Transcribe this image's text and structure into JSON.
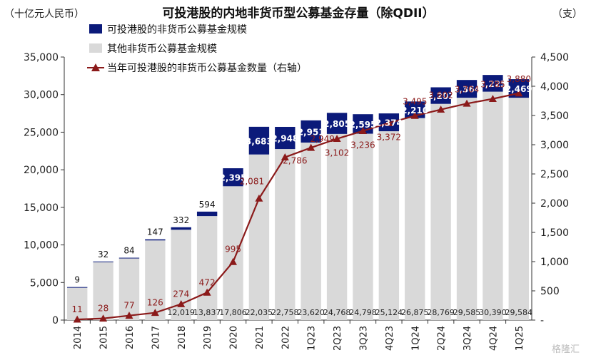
{
  "title": "可投港股的内地非货币型公募基金存量（除QDII）",
  "left_unit": "（十亿元人民币）",
  "right_unit": "（支）",
  "watermark": "格隆汇",
  "colors": {
    "hk": "#0b1a7a",
    "other": "#d9d9d9",
    "line": "#8b1a1a"
  },
  "chart_data": {
    "type": "bar",
    "stacked": true,
    "categories": [
      "2014",
      "2015",
      "2016",
      "2017",
      "2018",
      "2019",
      "2020",
      "2021",
      "2022",
      "1Q23",
      "2Q23",
      "3Q23",
      "4Q23",
      "1Q24",
      "2Q24",
      "3Q24",
      "4Q24",
      "1Q25"
    ],
    "series": [
      {
        "name": "其他非货币公募基金规模",
        "axis": "left",
        "values": [
          4300,
          7700,
          8200,
          10600,
          12019,
          13837,
          17806,
          22035,
          22758,
          23620,
          24768,
          24798,
          25124,
          26875,
          28769,
          29585,
          30390,
          29584
        ],
        "labels": [
          "",
          "",
          "",
          "",
          "12,019",
          "13,837",
          "17,806",
          "22,035",
          "22,758",
          "23,620",
          "24,768",
          "24,798",
          "25,124",
          "26,875",
          "28,769",
          "29,585",
          "30,390",
          "29,584"
        ]
      },
      {
        "name": "可投港股的非货币公募基金规模",
        "axis": "left",
        "values": [
          9,
          32,
          84,
          147,
          332,
          594,
          2395,
          3683,
          2948,
          2951,
          2805,
          2595,
          2374,
          2210,
          2202,
          2364,
          2225,
          2469
        ],
        "labels": [
          "9",
          "32",
          "84",
          "147",
          "332",
          "594",
          "2,395",
          "3,683",
          "2,948",
          "2,951",
          "2,805",
          "2,595",
          "2,374",
          "2,210",
          "2,202",
          "2,364",
          "2,225",
          "2,469"
        ]
      },
      {
        "name": "当年可投港股的非货币公募基金数量（右轴）",
        "axis": "right",
        "type": "line",
        "values": [
          11,
          28,
          77,
          126,
          274,
          472,
          995,
          2081,
          2786,
          2949,
          3102,
          3236,
          3372,
          3495,
          3602,
          3704,
          3785,
          3880
        ],
        "labels": [
          "11",
          "28",
          "77",
          "126",
          "274",
          "472",
          "995",
          "2,081",
          "2,786",
          "2,949",
          "3,102",
          "3,236",
          "3,372",
          "3,495",
          "3,602",
          "3,704",
          "3,785",
          "3,880"
        ]
      }
    ],
    "y_left": {
      "lim": [
        0,
        35000
      ],
      "ticks": [
        "0",
        "5,000",
        "10,000",
        "15,000",
        "20,000",
        "25,000",
        "30,000",
        "35,000"
      ]
    },
    "y_right": {
      "lim": [
        0,
        4500
      ],
      "ticks": [
        "-",
        "500",
        "1,000",
        "1,500",
        "2,000",
        "2,500",
        "3,000",
        "3,500",
        "4,000",
        "4,500"
      ]
    },
    "legend_position": "top-left"
  }
}
